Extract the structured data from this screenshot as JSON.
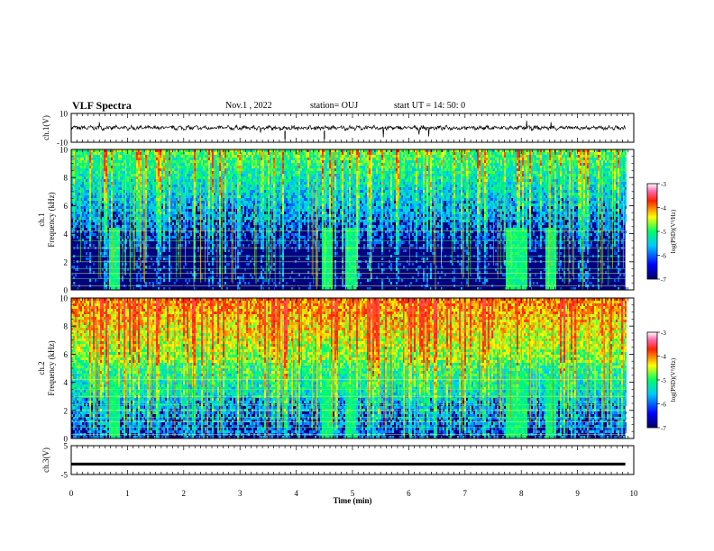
{
  "header": {
    "title": "VLF Spectra",
    "date": "Nov.1 , 2022",
    "station": "station= OUJ",
    "start_time": "start UT = 14: 50: 0"
  },
  "chart_data": [
    {
      "type": "line",
      "panel": "ch1-waveform",
      "ylabel": "ch.1(V)",
      "ylim": [
        -10,
        10
      ],
      "yticks": [
        "10",
        "-10"
      ],
      "xlim": [
        0,
        10
      ]
    },
    {
      "type": "heatmap",
      "panel": "ch1-spectrogram",
      "ylabel_line1": "ch.1",
      "ylabel_line2": "Frequency (kHz)",
      "ylim": [
        0,
        10
      ],
      "yticks": [
        "0",
        "2",
        "4",
        "6",
        "8",
        "10"
      ],
      "xlim": [
        0,
        10
      ],
      "colorbar": {
        "label": "log(PSD)(V²/Hz)",
        "range": [
          -7,
          -3
        ],
        "ticks": [
          "-3",
          "-4",
          "-5",
          "-6",
          "-7"
        ]
      },
      "bursts_min": [
        0.75,
        4.55,
        4.95,
        7.8,
        8.0,
        8.5
      ]
    },
    {
      "type": "heatmap",
      "panel": "ch2-spectrogram",
      "ylabel_line1": "ch.2",
      "ylabel_line2": "Frequency (kHz)",
      "ylim": [
        0,
        10
      ],
      "yticks": [
        "0",
        "2",
        "4",
        "6",
        "8",
        "10"
      ],
      "xlim": [
        0,
        10
      ],
      "colorbar": {
        "label": "log(PSD)(V²/Hz)",
        "range": [
          -7,
          -3
        ],
        "ticks": [
          "-3",
          "-4",
          "-5",
          "-6",
          "-7"
        ]
      },
      "bursts_min": [
        0.75,
        4.55,
        4.95,
        7.8,
        8.0,
        8.5
      ]
    },
    {
      "type": "line",
      "panel": "ch3-waveform",
      "ylabel": "ch.3(V)",
      "ylim": [
        -5,
        5
      ],
      "yticks": [
        "5",
        "-5"
      ],
      "xlim": [
        0,
        10
      ],
      "xlabel": "Time (min)",
      "xticks": [
        "0",
        "1",
        "2",
        "3",
        "4",
        "5",
        "6",
        "7",
        "8",
        "9",
        "10"
      ]
    }
  ]
}
